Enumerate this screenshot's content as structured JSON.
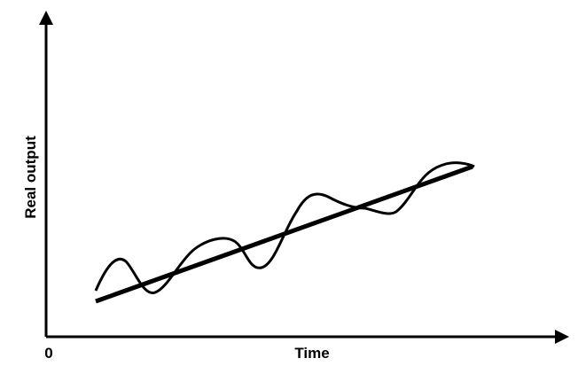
{
  "axes": {
    "y_label": "Real output",
    "x_label": "Time",
    "origin_label": "0"
  }
}
